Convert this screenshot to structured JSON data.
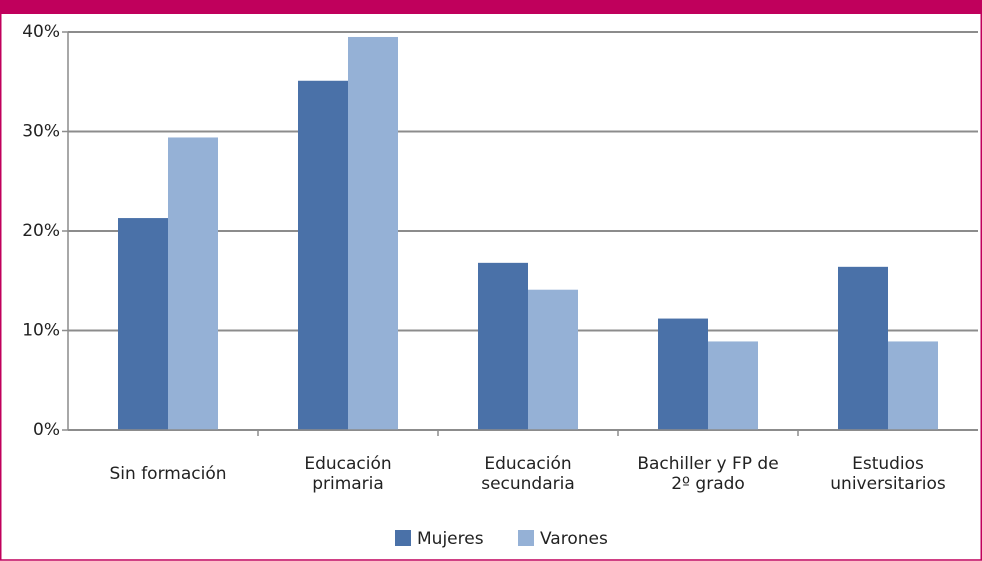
{
  "chart_data": {
    "type": "bar",
    "categories": [
      "Sin formación",
      "Educación\nprimaria",
      "Educación\nsecundaria",
      "Bachiller y FP de\n2º grado",
      "Estudios\nuniversitarios"
    ],
    "series": [
      {
        "name": "Mujeres",
        "color": "#4a71a8",
        "values": [
          21.3,
          35.1,
          16.8,
          11.2,
          16.4
        ]
      },
      {
        "name": "Varones",
        "color": "#95b1d6",
        "values": [
          29.4,
          39.5,
          14.1,
          8.9,
          8.9
        ]
      }
    ],
    "ylim": [
      0,
      40
    ],
    "yticks": [
      {
        "value": 0,
        "label": "0%"
      },
      {
        "value": 10,
        "label": "10%"
      },
      {
        "value": 20,
        "label": "20%"
      },
      {
        "value": 30,
        "label": "30%"
      },
      {
        "value": 40,
        "label": "40%"
      }
    ],
    "grid": true,
    "legend": "bottom"
  }
}
